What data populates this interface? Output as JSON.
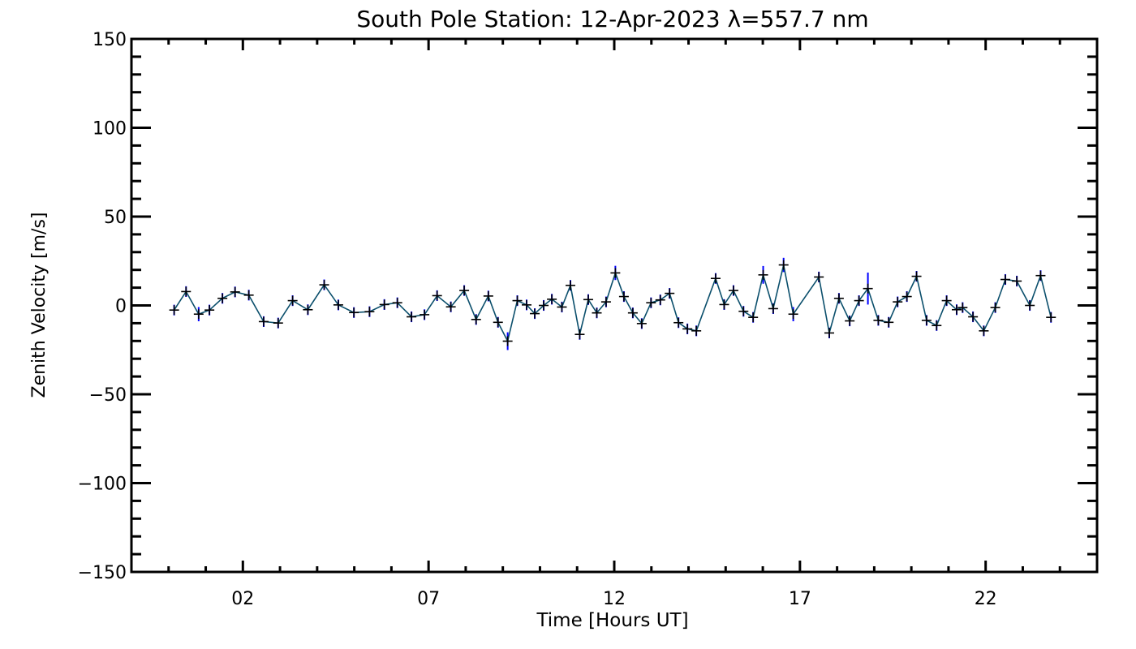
{
  "chart_data": {
    "type": "line",
    "title": "South Pole Station: 12-Apr-2023 λ=557.7 nm",
    "xlabel": "Time [Hours UT]",
    "ylabel": "Zenith Velocity [m/s]",
    "xlim": [
      -1,
      25
    ],
    "ylim": [
      -150,
      150
    ],
    "x_major_ticks": [
      2,
      7,
      12,
      17,
      22
    ],
    "x_tick_labels": [
      "02",
      "07",
      "12",
      "17",
      "22"
    ],
    "x_minor_step": 1,
    "y_major_ticks": [
      150,
      100,
      50,
      0,
      -50,
      -100,
      -150
    ],
    "y_tick_labels": [
      "150",
      "100",
      "50",
      "0",
      "−50",
      "−100",
      "−150"
    ],
    "y_minor_step": 10,
    "grid": false,
    "line_color": "#0b4f6c",
    "error_color": "#0000ff",
    "marker_color": "#000000",
    "series": [
      {
        "name": "Zenith Velocity",
        "x": [
          0.15,
          0.47,
          0.81,
          1.1,
          1.45,
          1.79,
          2.16,
          2.56,
          2.95,
          3.34,
          3.75,
          4.19,
          4.57,
          4.99,
          5.41,
          5.81,
          6.16,
          6.54,
          6.89,
          7.23,
          7.6,
          7.96,
          8.28,
          8.61,
          8.87,
          9.13,
          9.39,
          9.64,
          9.86,
          10.1,
          10.32,
          10.59,
          10.82,
          11.07,
          11.3,
          11.53,
          11.78,
          12.03,
          12.26,
          12.5,
          12.74,
          12.99,
          13.24,
          13.49,
          13.73,
          13.97,
          14.21,
          14.73,
          14.96,
          15.21,
          15.48,
          15.74,
          16.01,
          16.28,
          16.56,
          16.82,
          17.51,
          17.79,
          18.05,
          18.34,
          18.59,
          18.83,
          19.11,
          19.39,
          19.63,
          19.88,
          20.14,
          20.41,
          20.68,
          20.95,
          21.22,
          21.38,
          21.66,
          21.95,
          22.26,
          22.53,
          22.84,
          23.19,
          23.48,
          23.76
        ],
        "y": [
          -2.6,
          7.8,
          -4.9,
          -2.6,
          4.0,
          7.6,
          5.8,
          -9.1,
          -9.9,
          2.7,
          -2.4,
          11.6,
          0.3,
          -4.0,
          -3.5,
          0.5,
          1.5,
          -6.4,
          -5.2,
          5.5,
          -0.8,
          8.4,
          -7.9,
          5.3,
          -9.5,
          -20.1,
          2.7,
          0.3,
          -4.6,
          0.0,
          3.5,
          -0.9,
          11.3,
          -16.3,
          3.3,
          -4.2,
          2.0,
          18.3,
          5.0,
          -4.2,
          -10.2,
          1.5,
          3.1,
          6.8,
          -9.7,
          -13.2,
          -14.3,
          15.2,
          0.5,
          8.4,
          -3.3,
          -6.7,
          17.2,
          -1.8,
          22.8,
          -4.9,
          16.0,
          -15.5,
          4.0,
          -8.7,
          2.7,
          9.5,
          -8.4,
          -9.5,
          2.0,
          5.0,
          16.4,
          -8.4,
          -11.3,
          2.7,
          -2.4,
          -1.2,
          -6.4,
          -14.3,
          -1.2,
          14.6,
          13.7,
          0.0,
          16.8,
          -6.7
        ],
        "error": [
          3,
          3,
          4,
          3,
          3,
          3,
          3,
          3,
          3,
          3,
          3,
          3,
          3,
          3,
          3,
          3,
          3,
          3,
          3,
          3,
          3,
          3,
          3,
          3,
          3,
          5,
          3,
          3,
          3,
          3,
          3,
          3,
          3,
          3,
          3,
          3,
          3,
          4,
          3,
          3,
          3,
          3,
          3,
          3,
          3,
          3,
          3,
          3,
          3,
          3,
          3,
          3,
          5,
          3,
          4,
          4,
          3,
          3,
          3,
          3,
          3,
          9,
          3,
          3,
          3,
          3,
          3,
          3,
          3,
          3,
          3,
          3,
          3,
          3,
          3,
          3,
          3,
          3,
          3,
          3
        ]
      }
    ]
  }
}
